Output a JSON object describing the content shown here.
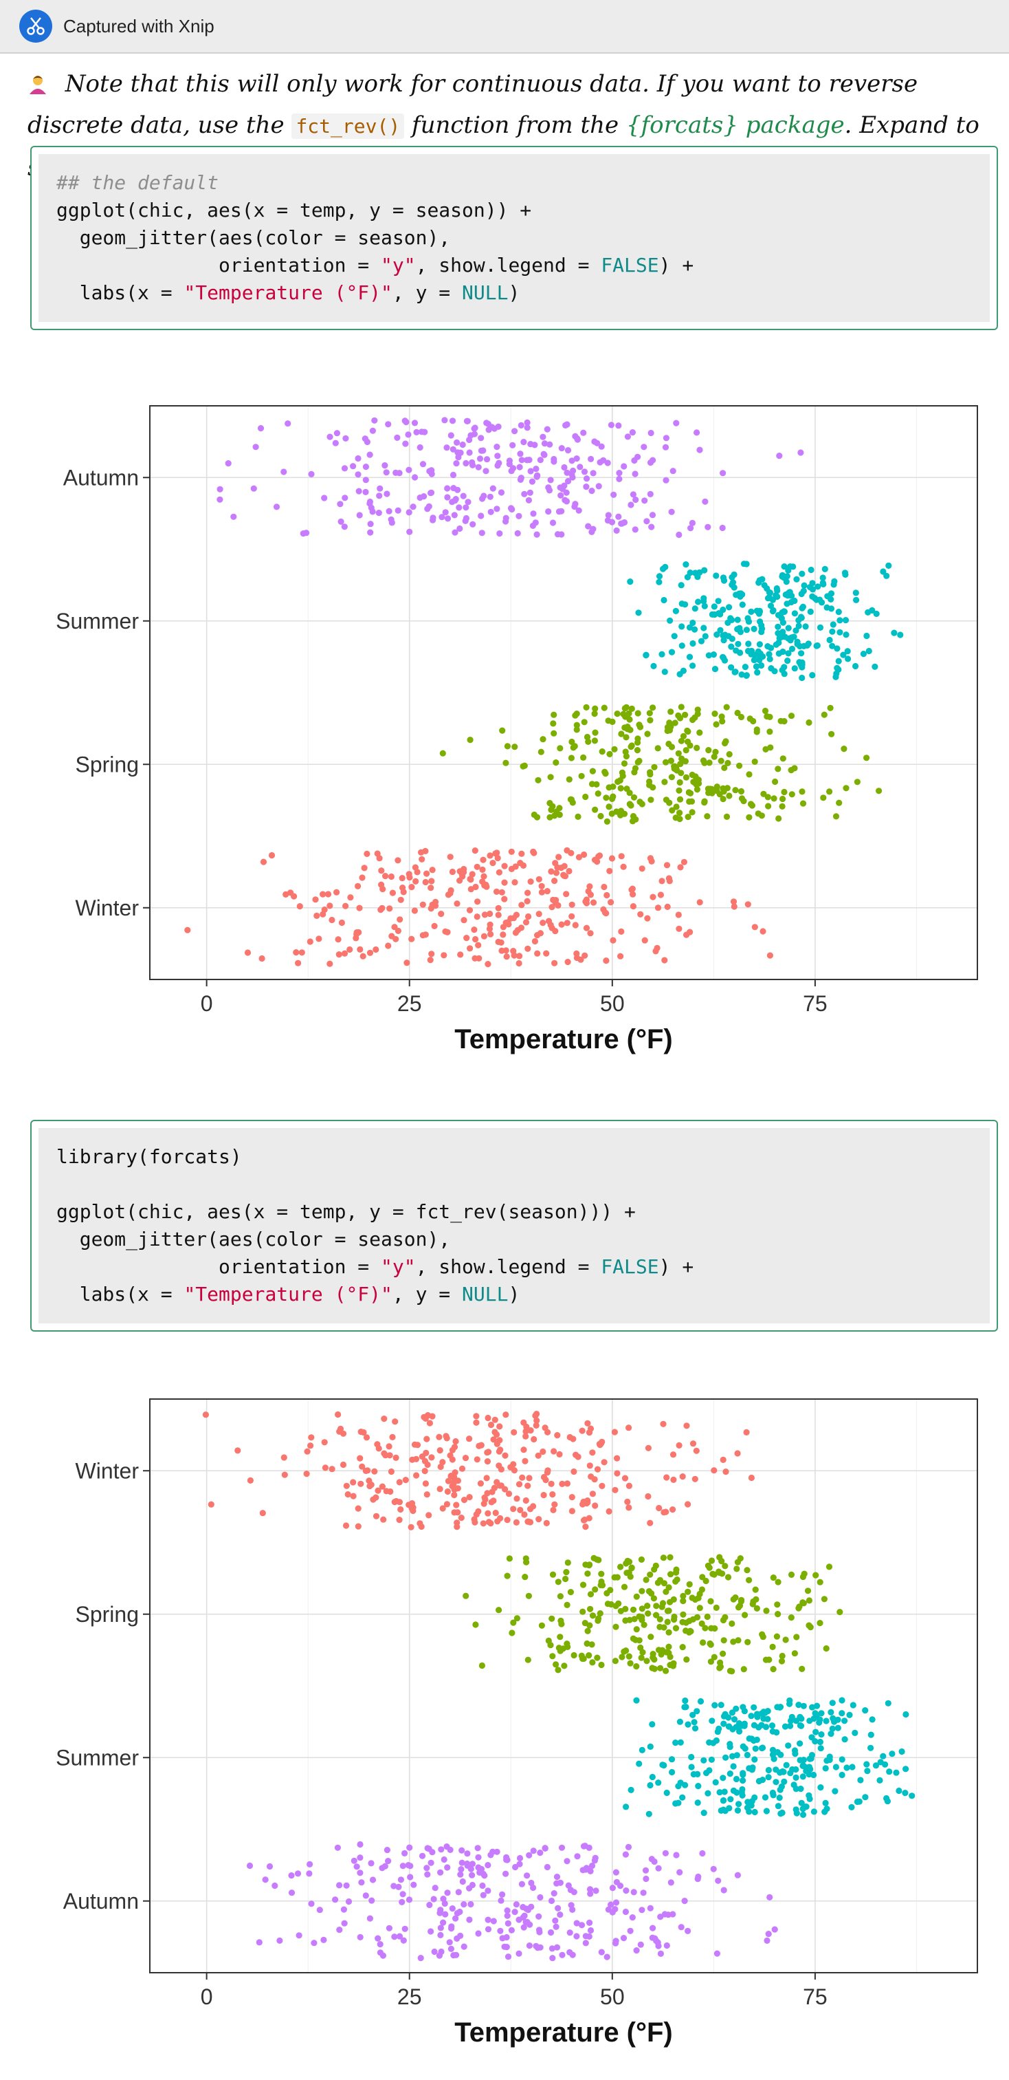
{
  "titlebar": {
    "title": "Captured with Xnip",
    "icon": "xnip-scissors-icon"
  },
  "note": {
    "text_a": " Note that this will only work for continuous data. If you want to reverse discrete data, use the ",
    "code": "fct_rev()",
    "text_b": " function from the ",
    "package": "{forcats} package",
    "text_c": ". Expand to see example."
  },
  "code1": {
    "comment": "## the default",
    "l2": "ggplot(chic, aes(x = temp, y = season)) +",
    "l3": "  geom_jitter(aes(color = season),",
    "l4a": "              orientation = ",
    "l4str": "\"y\"",
    "l4b": ", show.legend = ",
    "l4const": "FALSE",
    "l4c": ") +",
    "l5a": "  labs(x = ",
    "l5str": "\"Temperature (°F)\"",
    "l5b": ", y = ",
    "l5const": "NULL",
    "l5c": ")"
  },
  "code2": {
    "l1": "library(forcats)",
    "l3": "ggplot(chic, aes(x = temp, y = fct_rev(season))) +",
    "l4": "  geom_jitter(aes(color = season),",
    "l5a": "              orientation = ",
    "l5str": "\"y\"",
    "l5b": ", show.legend = ",
    "l5const": "FALSE",
    "l5c": ") +",
    "l6a": "  labs(x = ",
    "l6str": "\"Temperature (°F)\"",
    "l6b": ", y = ",
    "l6const": "NULL",
    "l6c": ")"
  },
  "chart_data": [
    {
      "type": "scatter",
      "title": "",
      "xlabel": "Temperature (°F)",
      "ylabel": "",
      "xlim": [
        -7,
        95
      ],
      "xticks": [
        0,
        25,
        50,
        75
      ],
      "categories_top_to_bottom": [
        "Autumn",
        "Summer",
        "Spring",
        "Winter"
      ],
      "grid": true,
      "legend": "none",
      "jitter": 0.4,
      "series": [
        {
          "name": "Autumn",
          "color": "#C77CFF",
          "x_range": [
            -1,
            74
          ],
          "n": 300
        },
        {
          "name": "Summer",
          "color": "#00BFC4",
          "x_range": [
            49,
            90
          ],
          "n": 290
        },
        {
          "name": "Spring",
          "color": "#7CAE00",
          "x_range": [
            29,
            84
          ],
          "n": 290
        },
        {
          "name": "Winter",
          "color": "#F8766D",
          "x_range": [
            -3,
            73
          ],
          "n": 300
        }
      ]
    },
    {
      "type": "scatter",
      "title": "",
      "xlabel": "Temperature (°F)",
      "ylabel": "",
      "xlim": [
        -7,
        95
      ],
      "xticks": [
        0,
        25,
        50,
        75
      ],
      "categories_top_to_bottom": [
        "Winter",
        "Spring",
        "Summer",
        "Autumn"
      ],
      "grid": true,
      "legend": "none",
      "jitter": 0.4,
      "series": [
        {
          "name": "Winter",
          "color": "#F8766D",
          "x_range": [
            -3,
            73
          ],
          "n": 300
        },
        {
          "name": "Spring",
          "color": "#7CAE00",
          "x_range": [
            29,
            84
          ],
          "n": 290
        },
        {
          "name": "Summer",
          "color": "#00BFC4",
          "x_range": [
            49,
            90
          ],
          "n": 290
        },
        {
          "name": "Autumn",
          "color": "#C77CFF",
          "x_range": [
            -1,
            74
          ],
          "n": 300
        }
      ]
    }
  ]
}
